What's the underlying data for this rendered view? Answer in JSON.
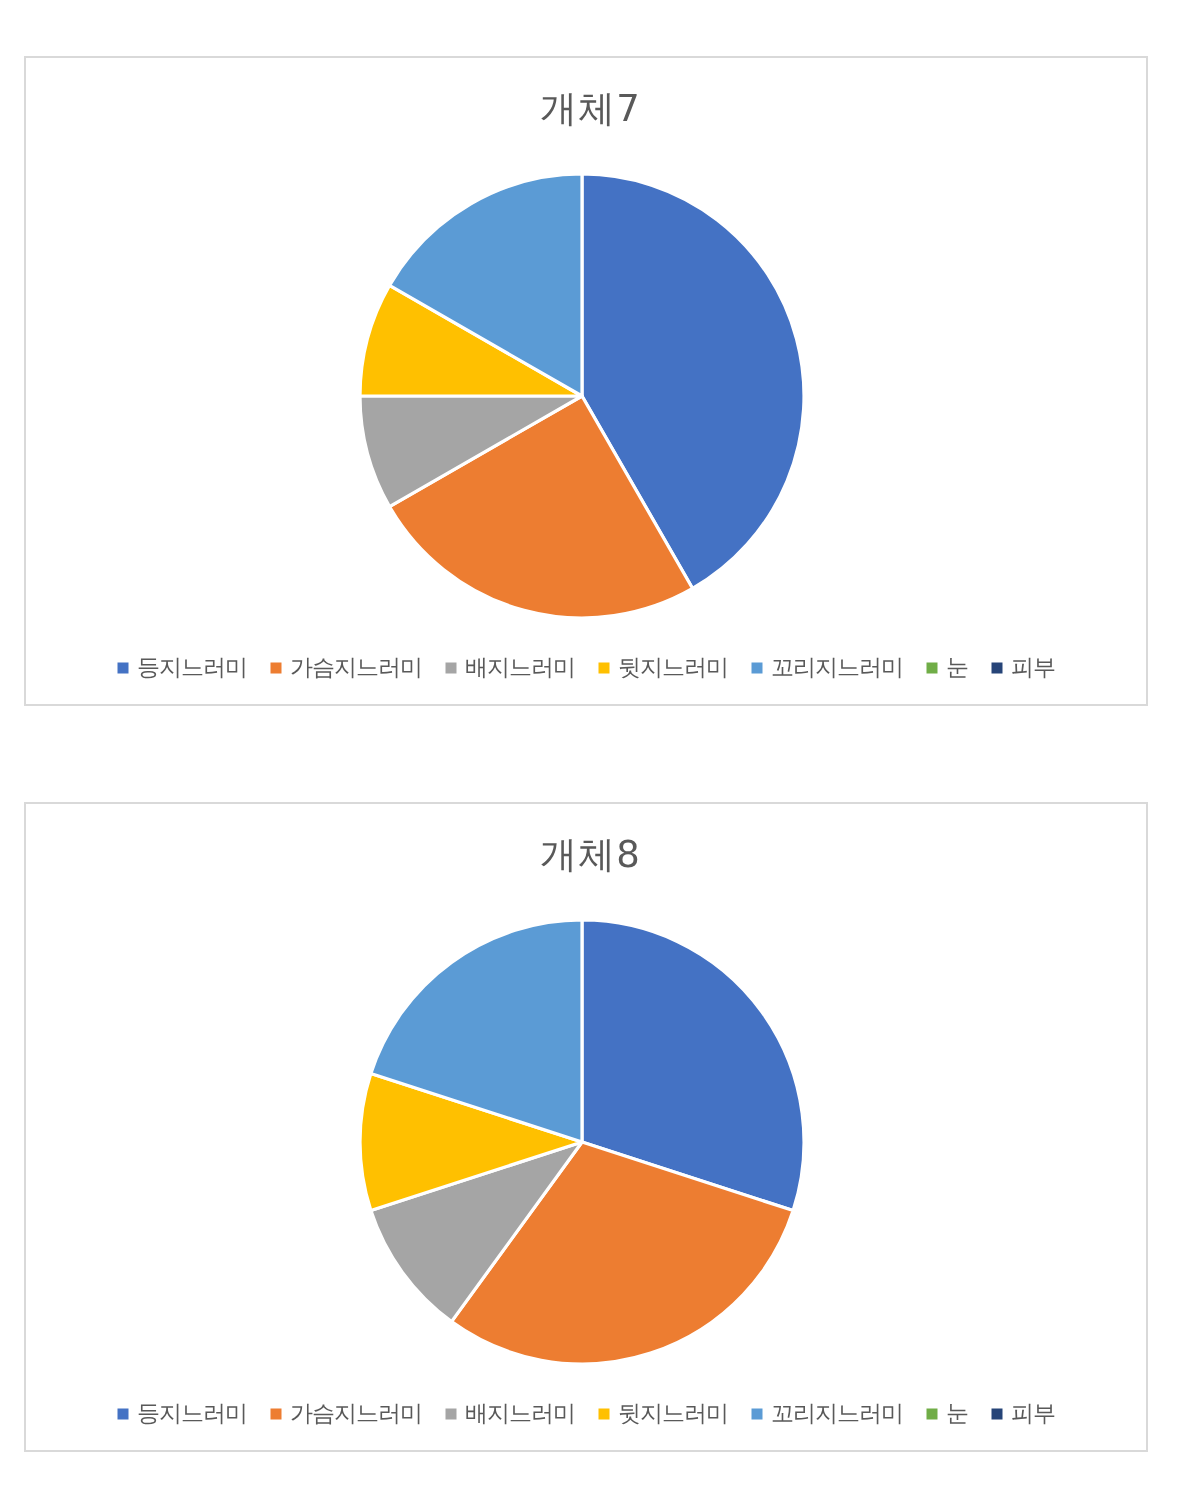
{
  "chart_data": [
    {
      "type": "pie",
      "title": "개체7",
      "categories": [
        "등지느러미",
        "가슴지느러미",
        "배지느러미",
        "뒷지느러미",
        "꼬리지느러미",
        "눈",
        "피부"
      ],
      "values": [
        41.7,
        25,
        8.3,
        8.3,
        16.7,
        0,
        0
      ],
      "colors": [
        "#4472c4",
        "#ed7d31",
        "#a5a5a5",
        "#ffc000",
        "#5b9bd5",
        "#70ad47",
        "#264478"
      ],
      "legend": "bottom"
    },
    {
      "type": "pie",
      "title": "개체8",
      "categories": [
        "등지느러미",
        "가슴지느러미",
        "배지느러미",
        "뒷지느러미",
        "꼬리지느러미",
        "눈",
        "피부"
      ],
      "values": [
        30,
        30,
        10,
        10,
        20,
        0,
        0
      ],
      "colors": [
        "#4472c4",
        "#ed7d31",
        "#a5a5a5",
        "#ffc000",
        "#5b9bd5",
        "#70ad47",
        "#264478"
      ],
      "legend": "bottom"
    }
  ]
}
